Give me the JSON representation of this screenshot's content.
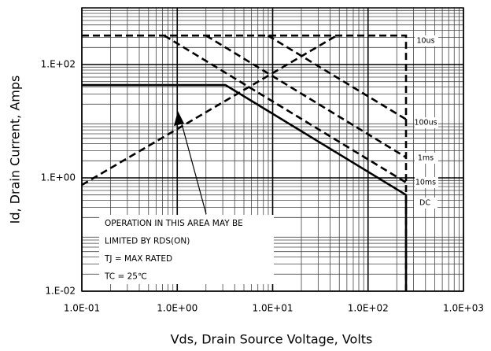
{
  "chart_data": {
    "type": "line",
    "x_label": "Vds, Drain Source Voltage, Volts",
    "y_label": "Id, Drain Current, Amps",
    "xlog": true,
    "ylog": true,
    "grid": true,
    "minor_grid": true,
    "xlim": [
      0.1,
      1000
    ],
    "ylim": [
      0.01,
      1000
    ],
    "xticks": [
      {
        "value": 0.1,
        "label": "1.0E-01"
      },
      {
        "value": 1,
        "label": "1.0E+00"
      },
      {
        "value": 10,
        "label": "1.0E+01"
      },
      {
        "value": 100,
        "label": "1.0E+02"
      },
      {
        "value": 1000,
        "label": "1.0E+03"
      }
    ],
    "yticks": [
      {
        "value": 0.01,
        "label": "1.E-02"
      },
      {
        "value": 1,
        "label": "1.E+00"
      },
      {
        "value": 100,
        "label": "1.E+02"
      }
    ],
    "series": [
      {
        "color": "#000000",
        "dashed": true,
        "x": [
          0.1,
          47
        ],
        "values": [
          0.75,
          325
        ]
      },
      {
        "name": "10us",
        "color": "#000000",
        "dashed": true,
        "x": [
          0.1,
          250,
          250
        ],
        "values": [
          325,
          325,
          0.01
        ]
      },
      {
        "name": "100us",
        "color": "#000000",
        "dashed": true,
        "x": [
          8.9,
          250
        ],
        "values": [
          325,
          10.8
        ]
      },
      {
        "name": "1ms",
        "color": "#000000",
        "dashed": true,
        "x": [
          2.0,
          250
        ],
        "values": [
          325,
          2.3
        ]
      },
      {
        "name": "10ms",
        "color": "#000000",
        "dashed": true,
        "x": [
          0.73,
          250
        ],
        "values": [
          325,
          0.83
        ]
      },
      {
        "name": "DC",
        "color": "#000000",
        "dashed": false,
        "x": [
          0.1,
          3.2,
          250,
          250
        ],
        "values": [
          43.5,
          43.5,
          0.5,
          0.01
        ]
      }
    ],
    "annotations": [
      "OPERATION IN THIS AREA MAY BE",
      "LIMITED BY RDS(ON)",
      "TJ = MAX RATED",
      "TC = 25℃"
    ]
  }
}
